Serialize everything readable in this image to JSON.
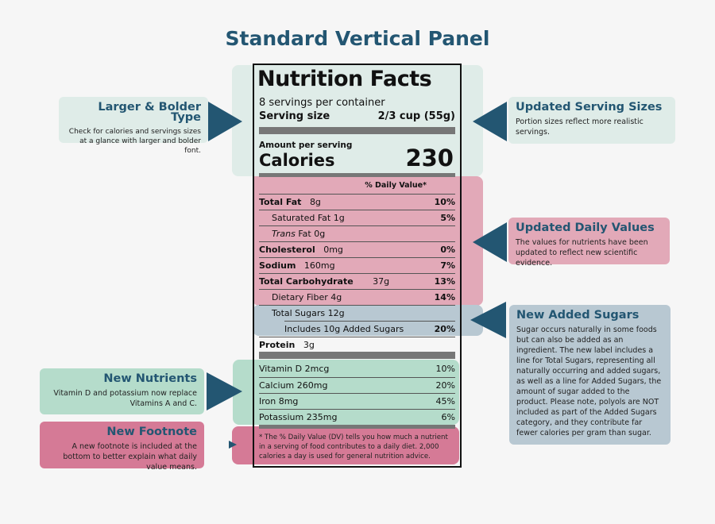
{
  "title": "Standard Vertical Panel",
  "colors": {
    "accent": "#235672",
    "green_light": "#dfece8",
    "pink": "#e2a9b8",
    "blue_gray": "#b8c8d2",
    "green": "#b5dccb",
    "pink_dark": "#d57a96"
  },
  "label": {
    "heading": "Nutrition Facts",
    "servings": "8 servings per container",
    "serving_size_label": "Serving size",
    "serving_size_value": "2/3 cup (55g)",
    "amount_per_serving": "Amount per serving",
    "calories_label": "Calories",
    "calories_value": "230",
    "dv_header": "% Daily Value*",
    "rows": [
      {
        "name": "Total Fat",
        "amount": "8g",
        "dv": "10%"
      },
      {
        "name": "Saturated Fat",
        "amount": "1g",
        "dv": "5%"
      },
      {
        "name": "Trans",
        "name2": "Fat",
        "amount": "0g",
        "dv": ""
      },
      {
        "name": "Cholesterol",
        "amount": "0mg",
        "dv": "0%"
      },
      {
        "name": "Sodium",
        "amount": "160mg",
        "dv": "7%"
      },
      {
        "name": "Total Carbohydrate",
        "amount": "37g",
        "dv": "13%"
      },
      {
        "name": "Dietary Fiber",
        "amount": "4g",
        "dv": "14%"
      },
      {
        "name": "Total Sugars",
        "amount": "12g",
        "dv": ""
      },
      {
        "name": "Includes 10g Added Sugars",
        "amount": "",
        "dv": "20%"
      },
      {
        "name": "Protein",
        "amount": "3g",
        "dv": ""
      }
    ],
    "vitamins": [
      {
        "name": "Vitamin D 2mcg",
        "dv": "10%"
      },
      {
        "name": "Calcium 260mg",
        "dv": "20%"
      },
      {
        "name": "Iron 8mg",
        "dv": "45%"
      },
      {
        "name": "Potassium 235mg",
        "dv": "6%"
      }
    ],
    "footnote": "* The % Daily Value (DV) tells you how much a nutrient in a serving of food contributes to a daily diet. 2,000 calories a day is used for general nutrition advice."
  },
  "callouts": {
    "larger": {
      "title": "Larger & Bolder Type",
      "text": "Check for calories and servings sizes at a glance with larger and bolder font."
    },
    "serving": {
      "title": "Updated Serving Sizes",
      "text": "Portion sizes reflect more realistic servings."
    },
    "dv": {
      "title": "Updated Daily Values",
      "text": "The values for nutrients have been updated to reflect new scientific evidence."
    },
    "sugars": {
      "title": "New Added Sugars",
      "text": "Sugar occurs naturally in some foods but can also be added as an ingredient. The new label includes a line for Total Sugars, representing all naturally occurring and added sugars, as well as a line for Added Sugars, the amount of sugar added to the product. Please note, polyols are NOT included as part of the Added Sugars category, and they contribute far fewer calories per gram than sugar."
    },
    "nutrients": {
      "title": "New Nutrients",
      "text": "Vitamin D and potassium now replace Vitamins A and C."
    },
    "footnote": {
      "title": "New Footnote",
      "text": "A new footnote is included at the bottom to better explain what daily value means."
    }
  }
}
